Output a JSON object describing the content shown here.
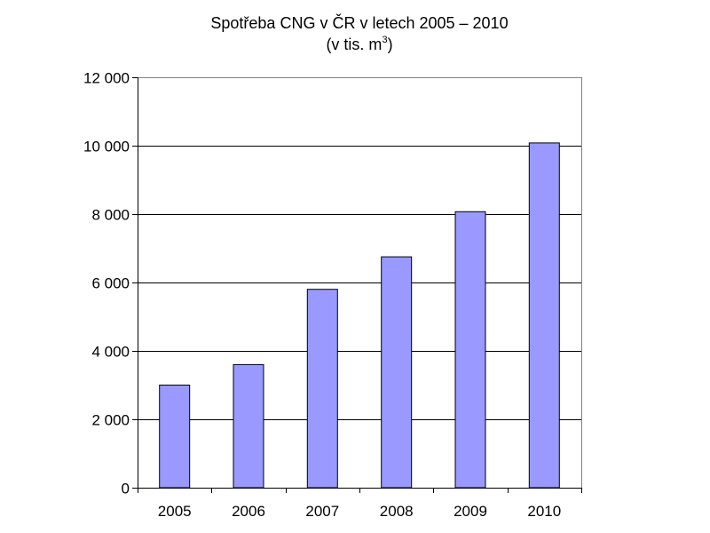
{
  "chart_data": {
    "type": "bar",
    "title": "Spotřeba CNG v ČR v letech 2005 – 2010",
    "subtitle_main": "(v tis. m",
    "subtitle_sup": "3",
    "subtitle_close": ")",
    "categories": [
      "2005",
      "2006",
      "2007",
      "2008",
      "2009",
      "2010"
    ],
    "values": [
      3000,
      3600,
      5800,
      6750,
      8070,
      10080
    ],
    "ylim": [
      0,
      12000
    ],
    "yticks": [
      0,
      2000,
      4000,
      6000,
      8000,
      10000,
      12000
    ],
    "ytick_labels": [
      "0",
      "2 000",
      "4 000",
      "6 000",
      "8 000",
      "10 000",
      "12 000"
    ],
    "grid": true,
    "bar_color": "#9999ff",
    "bar_stroke": "#000000",
    "grid_color": "#000000"
  }
}
